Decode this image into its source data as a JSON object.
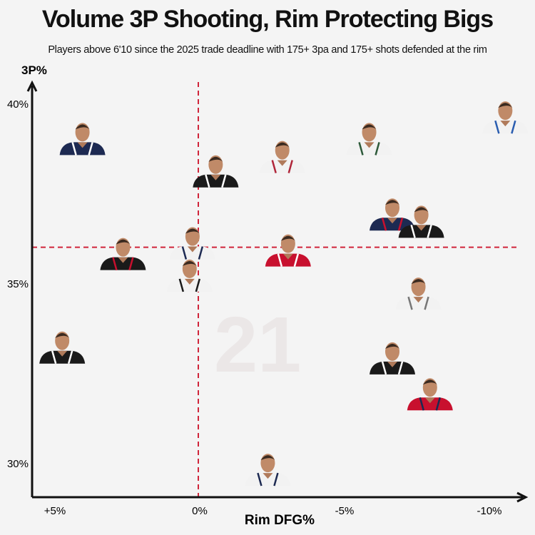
{
  "title": "Volume 3P Shooting, Rim Protecting Bigs",
  "subtitle": "Players above 6'10 since the 2025 trade deadline with 175+ 3pa and 175+ shots defended at the rim",
  "colors": {
    "reference_line": "#d0253a",
    "axis": "#111111",
    "background": "#f4f4f4"
  },
  "chart_data": {
    "type": "scatter",
    "marker": "player-headshot",
    "xlabel": "Rim DFG%",
    "ylabel": "3P%",
    "x_ticks": [
      {
        "value": 5,
        "label": "+5%"
      },
      {
        "value": 0,
        "label": "0%"
      },
      {
        "value": -5,
        "label": "-5%"
      },
      {
        "value": -10,
        "label": "-10%"
      }
    ],
    "y_ticks": [
      {
        "value": 40,
        "label": "40%"
      },
      {
        "value": 35,
        "label": "35%"
      },
      {
        "value": 30,
        "label": "30%"
      }
    ],
    "x_reversed": true,
    "xlim": [
      5.8,
      -11
    ],
    "ylim": [
      29,
      40.7
    ],
    "grid": false,
    "reference_lines": {
      "x": 0,
      "y": 36.0
    },
    "points": [
      {
        "x": 4.0,
        "y": 39.0,
        "jersey": "#1d2a52",
        "trim": "#ffffff"
      },
      {
        "x": -0.6,
        "y": 38.1,
        "jersey": "#1a1a1a",
        "trim": "#ffffff"
      },
      {
        "x": -2.9,
        "y": 38.5,
        "jersey": "#f2f2f2",
        "trim": "#b0263a"
      },
      {
        "x": -5.9,
        "y": 39.0,
        "jersey": "#f2f2f2",
        "trim": "#2d5a3a"
      },
      {
        "x": -10.6,
        "y": 39.6,
        "jersey": "#f2f2f2",
        "trim": "#2a5db0"
      },
      {
        "x": -6.7,
        "y": 36.9,
        "jersey": "#1d2a52",
        "trim": "#c8102e"
      },
      {
        "x": -7.7,
        "y": 36.7,
        "jersey": "#1a1a1a",
        "trim": "#ffffff"
      },
      {
        "x": 2.6,
        "y": 35.8,
        "jersey": "#1a1a1a",
        "trim": "#c8102e"
      },
      {
        "x": 0.2,
        "y": 36.1,
        "jersey": "#f2f2f2",
        "trim": "#1d2a52"
      },
      {
        "x": -3.1,
        "y": 35.9,
        "jersey": "#c8102e",
        "trim": "#ffffff"
      },
      {
        "x": 0.3,
        "y": 35.2,
        "jersey": "#f2f2f2",
        "trim": "#1a1a1a"
      },
      {
        "x": -7.6,
        "y": 34.7,
        "jersey": "#f2f2f2",
        "trim": "#777777"
      },
      {
        "x": 4.7,
        "y": 33.2,
        "jersey": "#1a1a1a",
        "trim": "#ffffff"
      },
      {
        "x": -6.7,
        "y": 32.9,
        "jersey": "#1a1a1a",
        "trim": "#ffffff"
      },
      {
        "x": -8.0,
        "y": 31.9,
        "jersey": "#c8102e",
        "trim": "#1d2a52"
      },
      {
        "x": -2.4,
        "y": 29.8,
        "jersey": "#f2f2f2",
        "trim": "#1d2a52"
      }
    ]
  }
}
